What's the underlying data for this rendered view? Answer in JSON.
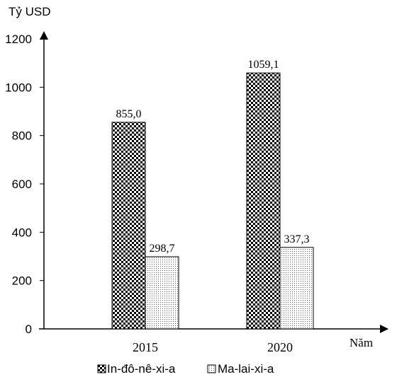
{
  "chart_data": {
    "type": "bar",
    "ylabel": "Tỷ USD",
    "xlabel": "Năm",
    "categories": [
      "2015",
      "2020"
    ],
    "ylim": [
      0,
      1200
    ],
    "yticks": [
      "0",
      "200",
      "400",
      "600",
      "800",
      "1000",
      "1200"
    ],
    "grid": false,
    "legend_position": "bottom",
    "series": [
      {
        "name": "In-đô-nê-xi-a",
        "values": [
          855.0,
          1059.1
        ],
        "labels": [
          "855,0",
          "1059,1"
        ],
        "pattern": "checkerboard",
        "color": "#000000"
      },
      {
        "name": "Ma-lai-xi-a",
        "values": [
          298.7,
          337.3
        ],
        "labels": [
          "298,7",
          "337,3"
        ],
        "pattern": "fine-dots",
        "color": "#000000"
      }
    ]
  }
}
